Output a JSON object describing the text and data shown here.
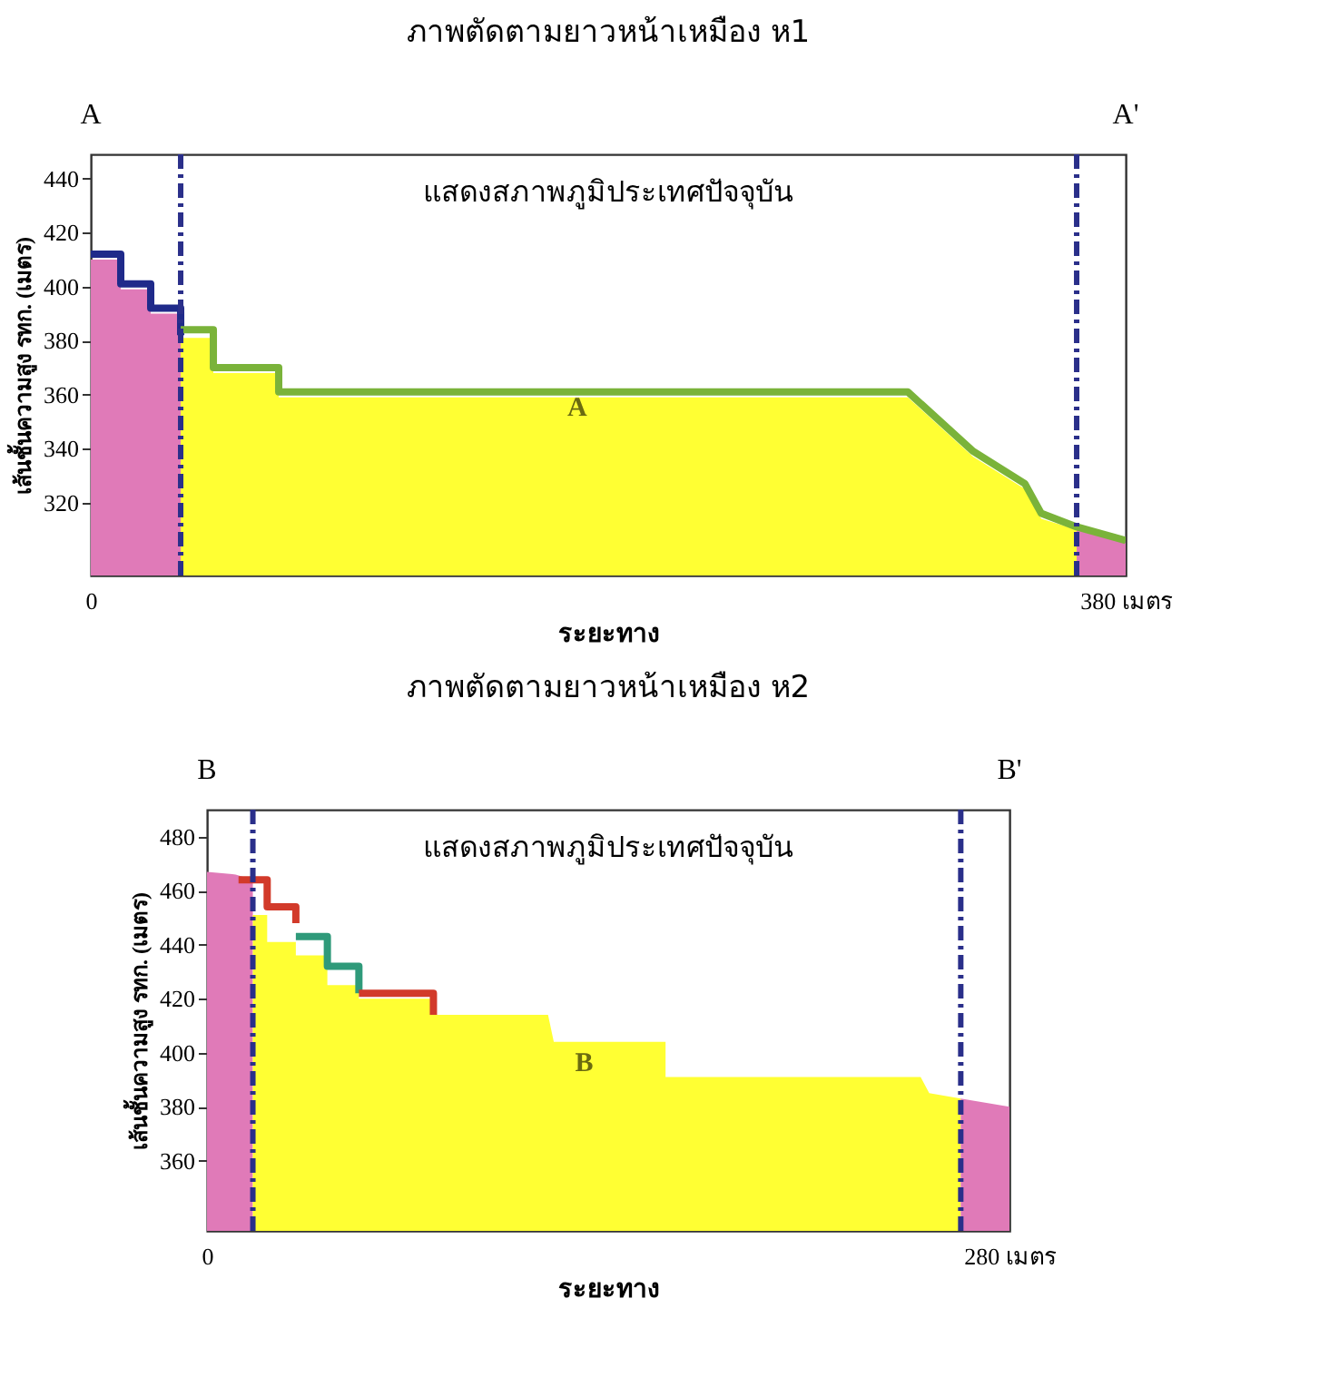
{
  "chart_data": [
    {
      "type": "area",
      "title": "ภาพตัดตามยาวหน้าเหมือง ห1",
      "xlabel": "ระยะทาง",
      "ylabel": "เส้นชั้นความสูง รทก. (เมตร)",
      "xlim": [
        0,
        380
      ],
      "ylim": [
        293,
        449
      ],
      "xticks": [
        0,
        {
          "value": 380,
          "label": "380 เมตร"
        }
      ],
      "yticks": [
        320,
        340,
        360,
        380,
        400,
        420,
        440
      ],
      "grid": false,
      "series": [
        {
          "type": "area",
          "color": "#e07ab8",
          "x": [
            0,
            11,
            11,
            22,
            22,
            33
          ],
          "values": [
            410,
            410,
            399,
            399,
            390,
            390
          ]
        },
        {
          "type": "area",
          "color": "#ffff33",
          "x": [
            33,
            45,
            45,
            69,
            69,
            300,
            324,
            343,
            349,
            362
          ],
          "values": [
            381,
            381,
            368,
            368,
            359,
            359,
            337,
            325,
            314,
            310
          ]
        },
        {
          "type": "area",
          "color": "#e07ab8",
          "x": [
            362,
            380
          ],
          "values": [
            310,
            305
          ]
        },
        {
          "type": "line",
          "color": "#1f2a8a",
          "x": [
            0,
            11,
            11,
            22,
            22,
            33,
            33
          ],
          "values": [
            412,
            412,
            401,
            401,
            392,
            392,
            382
          ]
        },
        {
          "type": "line",
          "color": "#7ab33a",
          "x": [
            33,
            45,
            45,
            69,
            69,
            300,
            324,
            343,
            349,
            362,
            380
          ],
          "values": [
            384,
            384,
            370,
            370,
            361,
            361,
            339,
            327,
            316,
            311,
            306
          ]
        }
      ],
      "ref_lines": [
        {
          "axis": "x",
          "value": 33,
          "color": "#2a2f8a",
          "line_style": "dashed"
        },
        {
          "axis": "x",
          "value": 362,
          "color": "#2a2f8a",
          "line_style": "dashed"
        }
      ],
      "annotations": [
        "A",
        "A'",
        "แสดงสภาพภูมิประเทศปัจจุบัน",
        "A"
      ]
    },
    {
      "type": "area",
      "title": "ภาพตัดตามยาวหน้าเหมือง ห2",
      "xlabel": "ระยะทาง",
      "ylabel": "เส้นชั้นความสูง รทก. (เมตร)",
      "xlim": [
        0,
        280
      ],
      "ylim": [
        334,
        490
      ],
      "xticks": [
        0,
        {
          "value": 280,
          "label": "280 เมตร"
        }
      ],
      "yticks": [
        360,
        380,
        400,
        420,
        440,
        460,
        480
      ],
      "grid": false,
      "series": [
        {
          "type": "area",
          "color": "#e07ab8",
          "x": [
            0,
            10,
            16
          ],
          "values": [
            467,
            466,
            464
          ]
        },
        {
          "type": "area",
          "color": "#ffff33",
          "x": [
            16,
            21,
            21,
            31,
            31,
            42,
            42,
            53,
            53,
            79,
            79,
            119,
            121,
            160,
            160,
            249,
            252,
            263
          ],
          "values": [
            451,
            451,
            441,
            441,
            436,
            436,
            425,
            425,
            420,
            420,
            414,
            414,
            404,
            404,
            391,
            391,
            385,
            383
          ]
        },
        {
          "type": "area",
          "color": "#e07ab8",
          "x": [
            263,
            280
          ],
          "values": [
            383,
            380
          ]
        },
        {
          "type": "line",
          "color": "#d23a2a",
          "x": [
            11,
            21,
            21,
            31,
            31
          ],
          "values": [
            464,
            464,
            454,
            454,
            448
          ]
        },
        {
          "type": "line",
          "color": "#2f9a7a",
          "x": [
            31,
            42,
            42,
            53,
            53
          ],
          "values": [
            443,
            443,
            432,
            432,
            422
          ]
        },
        {
          "type": "line",
          "color": "#d23a2a",
          "x": [
            53,
            79,
            79
          ],
          "values": [
            422,
            422,
            414
          ]
        }
      ],
      "ref_lines": [
        {
          "axis": "x",
          "value": 16,
          "color": "#2a2f8a",
          "line_style": "dashed"
        },
        {
          "axis": "x",
          "value": 263,
          "color": "#2a2f8a",
          "line_style": "dashed"
        }
      ],
      "annotations": [
        "B",
        "B'",
        "แสดงสภาพภูมิประเทศปัจจุบัน",
        "B"
      ]
    }
  ]
}
